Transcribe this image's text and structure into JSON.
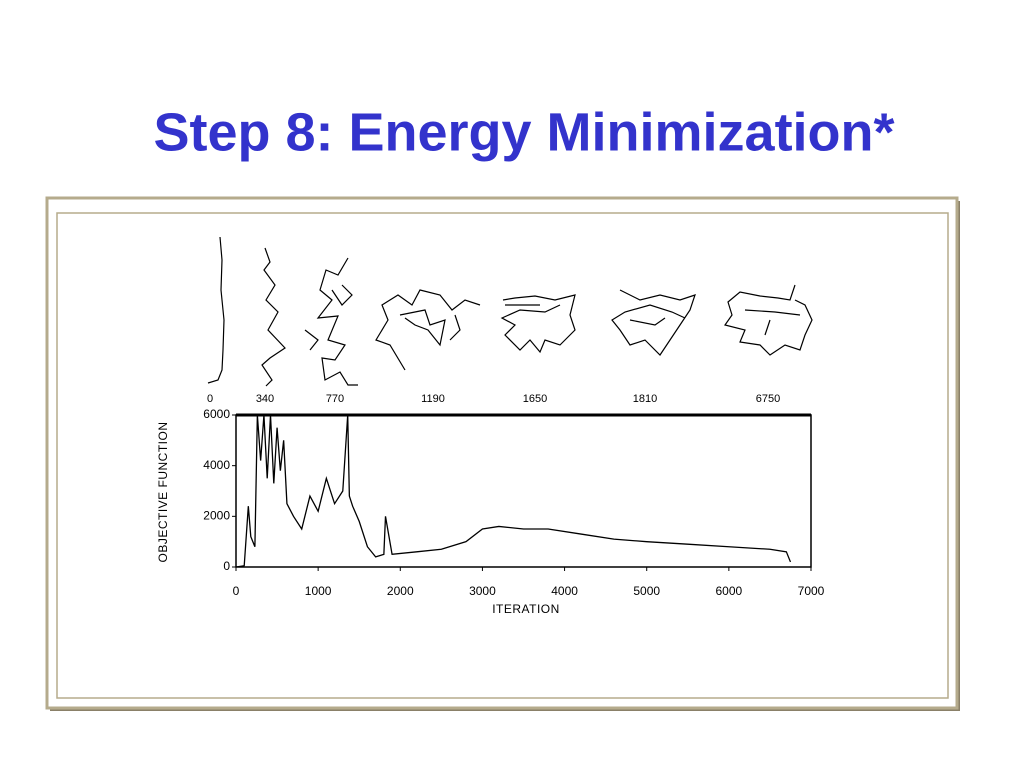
{
  "chart_data": {
    "type": "line",
    "title": "Step 8: Energy Minimization*",
    "snapshots": [
      0,
      340,
      770,
      1190,
      1650,
      1810,
      6750
    ],
    "x_label": "ITERATION",
    "y_label": "OBJECTIVE FUNCTION",
    "x": [
      0,
      100,
      150,
      180,
      230,
      260,
      300,
      340,
      380,
      420,
      460,
      500,
      540,
      580,
      620,
      700,
      800,
      900,
      1000,
      1100,
      1200,
      1300,
      1360,
      1380,
      1420,
      1500,
      1600,
      1700,
      1800,
      1820,
      1900,
      2200,
      2500,
      2800,
      3000,
      3200,
      3500,
      3800,
      4200,
      4600,
      5000,
      5500,
      6000,
      6500,
      6700,
      6750
    ],
    "series": [
      {
        "color": "#000000",
        "values": [
          0,
          50,
          2400,
          1200,
          800,
          6000,
          4200,
          6000,
          3500,
          6000,
          3300,
          5500,
          3800,
          5000,
          2500,
          2000,
          1500,
          2800,
          2200,
          3500,
          2500,
          3000,
          6000,
          2800,
          2400,
          1800,
          800,
          400,
          500,
          2000,
          500,
          600,
          700,
          1000,
          1500,
          1600,
          1500,
          1500,
          1300,
          1100,
          1000,
          900,
          800,
          700,
          600,
          200
        ]
      }
    ],
    "xlim": [
      0,
      7000
    ],
    "xticks": [
      0,
      1000,
      2000,
      3000,
      4000,
      5000,
      6000,
      7000
    ],
    "ylim": [
      0,
      6000
    ],
    "yticks": [
      0,
      2000,
      4000,
      6000
    ]
  }
}
